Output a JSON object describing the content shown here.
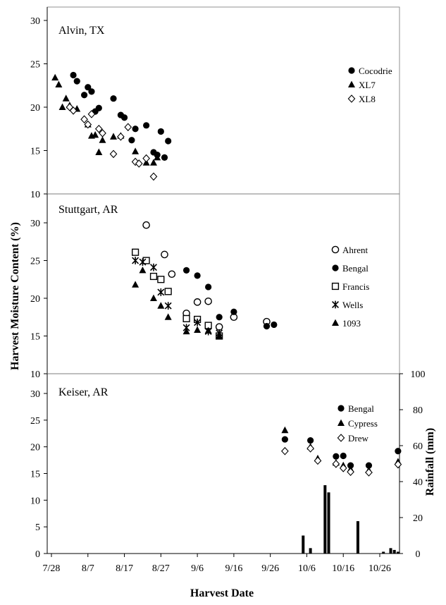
{
  "chart_data": {
    "type": "scatter",
    "ylabel": "Harvest Moisture Content (%)",
    "xlabel": "Harvest Date",
    "y2label": "Rainfall (mm)",
    "x_ticks": [
      "7/28",
      "8/7",
      "8/17",
      "8/27",
      "9/6",
      "9/16",
      "9/26",
      "10/6",
      "10/16",
      "10/26"
    ],
    "xlim": [
      "7/28",
      "11/1"
    ],
    "panels": [
      {
        "title": "Alvin, TX",
        "ylim": [
          10,
          35
        ],
        "y_ticks": [
          "10",
          "15",
          "20",
          "25",
          "30"
        ],
        "legend": [
          "Cocodrie",
          "XL7",
          "XL8"
        ],
        "series": [
          {
            "name": "Cocodrie",
            "marker": "circle-filled",
            "points": [
              [
                "8/3",
                23.7
              ],
              [
                "8/4",
                23.0
              ],
              [
                "8/6",
                21.4
              ],
              [
                "8/7",
                22.3
              ],
              [
                "8/8",
                21.8
              ],
              [
                "8/9",
                19.5
              ],
              [
                "8/10",
                19.9
              ],
              [
                "8/14",
                21.0
              ],
              [
                "8/16",
                19.1
              ],
              [
                "8/17",
                18.8
              ],
              [
                "8/19",
                16.2
              ],
              [
                "8/20",
                17.5
              ],
              [
                "8/23",
                17.9
              ],
              [
                "8/25",
                14.8
              ],
              [
                "8/26",
                14.5
              ],
              [
                "8/27",
                17.2
              ],
              [
                "8/28",
                14.2
              ],
              [
                "8/29",
                16.1
              ]
            ]
          },
          {
            "name": "XL7",
            "marker": "triangle-filled",
            "points": [
              [
                "7/29",
                23.4
              ],
              [
                "7/30",
                22.6
              ],
              [
                "7/31",
                20.0
              ],
              [
                "8/1",
                21.0
              ],
              [
                "8/2",
                20.2
              ],
              [
                "8/4",
                19.8
              ],
              [
                "8/7",
                18.0
              ],
              [
                "8/8",
                16.7
              ],
              [
                "8/9",
                16.8
              ],
              [
                "8/10",
                14.8
              ],
              [
                "8/11",
                16.2
              ],
              [
                "8/14",
                16.6
              ],
              [
                "8/16",
                16.7
              ],
              [
                "8/20",
                14.9
              ],
              [
                "8/23",
                13.6
              ],
              [
                "8/25",
                13.6
              ],
              [
                "8/26",
                14.2
              ]
            ]
          },
          {
            "name": "XL8",
            "marker": "diamond-open",
            "points": [
              [
                "8/2",
                20.0
              ],
              [
                "8/3",
                19.6
              ],
              [
                "8/6",
                18.6
              ],
              [
                "8/7",
                18.0
              ],
              [
                "8/8",
                19.2
              ],
              [
                "8/10",
                17.5
              ],
              [
                "8/11",
                17.0
              ],
              [
                "8/14",
                14.6
              ],
              [
                "8/16",
                16.6
              ],
              [
                "8/18",
                17.7
              ],
              [
                "8/20",
                13.7
              ],
              [
                "8/21",
                13.5
              ],
              [
                "8/23",
                14.1
              ],
              [
                "8/25",
                12.0
              ]
            ]
          }
        ]
      },
      {
        "title": "Stuttgart, AR",
        "ylim": [
          10,
          35
        ],
        "y_ticks": [
          "10",
          "15",
          "20",
          "25",
          "30"
        ],
        "legend": [
          "Ahrent",
          "Bengal",
          "Francis",
          "Wells",
          "1093"
        ],
        "series": [
          {
            "name": "Ahrent",
            "marker": "circle-open",
            "points": [
              [
                "8/23",
                29.7
              ],
              [
                "8/28",
                25.8
              ],
              [
                "8/30",
                23.2
              ],
              [
                "9/3",
                18.0
              ],
              [
                "9/6",
                19.5
              ],
              [
                "9/9",
                19.6
              ],
              [
                "9/12",
                16.2
              ],
              [
                "9/16",
                17.5
              ],
              [
                "9/25",
                16.9
              ]
            ]
          },
          {
            "name": "Bengal",
            "marker": "circle-filled",
            "points": [
              [
                "9/3",
                23.7
              ],
              [
                "9/6",
                23.0
              ],
              [
                "9/9",
                21.5
              ],
              [
                "9/12",
                17.5
              ],
              [
                "9/16",
                18.2
              ],
              [
                "9/25",
                16.3
              ],
              [
                "9/27",
                16.5
              ]
            ]
          },
          {
            "name": "Francis",
            "marker": "square-open",
            "points": [
              [
                "8/20",
                26.1
              ],
              [
                "8/23",
                25.0
              ],
              [
                "8/25",
                22.9
              ],
              [
                "8/27",
                22.5
              ],
              [
                "8/29",
                20.9
              ],
              [
                "9/3",
                17.3
              ],
              [
                "9/6",
                17.2
              ],
              [
                "9/9",
                16.4
              ],
              [
                "9/12",
                15.0
              ]
            ]
          },
          {
            "name": "Wells",
            "marker": "asterisk",
            "points": [
              [
                "8/20",
                25.0
              ],
              [
                "8/22",
                24.8
              ],
              [
                "8/25",
                24.1
              ],
              [
                "8/27",
                20.8
              ],
              [
                "8/29",
                19.0
              ],
              [
                "9/3",
                16.1
              ],
              [
                "9/6",
                16.8
              ],
              [
                "9/9",
                15.6
              ],
              [
                "9/12",
                15.4
              ]
            ]
          },
          {
            "name": "1093",
            "marker": "triangle-filled",
            "points": [
              [
                "8/20",
                21.8
              ],
              [
                "8/22",
                23.7
              ],
              [
                "8/25",
                20.0
              ],
              [
                "8/27",
                19.0
              ],
              [
                "8/29",
                17.5
              ],
              [
                "9/3",
                15.6
              ],
              [
                "9/6",
                15.8
              ],
              [
                "9/9",
                15.7
              ],
              [
                "9/12",
                15.0
              ]
            ]
          }
        ]
      },
      {
        "title": "Keiser, AR",
        "ylim": [
          0,
          35
        ],
        "y_ticks": [
          "0",
          "5",
          "10",
          "15",
          "20",
          "25",
          "30"
        ],
        "y2lim": [
          0,
          100
        ],
        "y2_ticks": [
          "0",
          "20",
          "40",
          "60",
          "80",
          "100"
        ],
        "legend": [
          "Bengal",
          "Cypress",
          "Drew"
        ],
        "series": [
          {
            "name": "Bengal",
            "marker": "circle-filled",
            "points": [
              [
                "9/30",
                21.4
              ],
              [
                "10/7",
                21.2
              ],
              [
                "10/14",
                18.2
              ],
              [
                "10/16",
                18.3
              ],
              [
                "10/18",
                16.5
              ],
              [
                "10/23",
                16.5
              ],
              [
                "10/31",
                19.2
              ]
            ]
          },
          {
            "name": "Cypress",
            "marker": "triangle-filled",
            "points": [
              [
                "9/30",
                23.1
              ],
              [
                "10/7",
                20.0
              ],
              [
                "10/9",
                17.8
              ],
              [
                "10/14",
                17.0
              ],
              [
                "10/16",
                16.5
              ],
              [
                "10/18",
                15.8
              ],
              [
                "10/23",
                15.6
              ],
              [
                "10/31",
                17.2
              ]
            ]
          },
          {
            "name": "Drew",
            "marker": "diamond-open",
            "points": [
              [
                "9/30",
                19.2
              ],
              [
                "10/7",
                19.7
              ],
              [
                "10/9",
                17.4
              ],
              [
                "10/14",
                16.8
              ],
              [
                "10/16",
                16.0
              ],
              [
                "10/18",
                15.3
              ],
              [
                "10/23",
                15.2
              ],
              [
                "10/31",
                16.7
              ]
            ]
          }
        ],
        "rainfall": [
          [
            "10/5",
            10
          ],
          [
            "10/7",
            3
          ],
          [
            "10/11",
            38
          ],
          [
            "10/12",
            34
          ],
          [
            "10/20",
            18
          ],
          [
            "10/27",
            1
          ],
          [
            "10/29",
            3
          ],
          [
            "10/30",
            2
          ],
          [
            "10/31",
            1
          ]
        ]
      }
    ]
  }
}
